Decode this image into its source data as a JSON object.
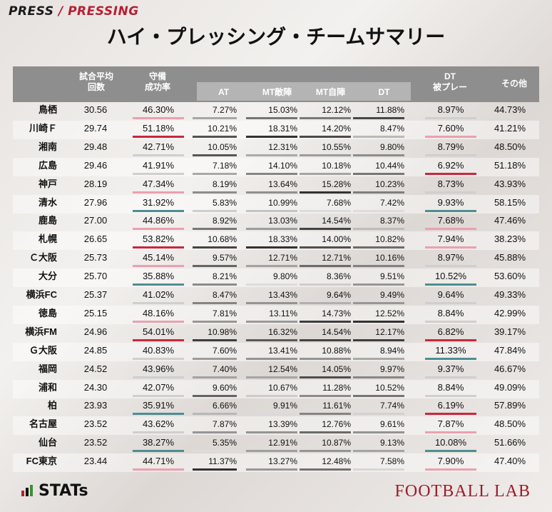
{
  "header_tag": {
    "left": "PRESS",
    "sep": " / ",
    "right": "PRESSING"
  },
  "title": "ハイ・プレッシング・チームサマリー",
  "columns": {
    "games_line1": "試合平均",
    "games_line2": "回数",
    "def_line1": "守備",
    "def_line2": "成功率",
    "at": "AT",
    "mt_fail": "MT敵陣",
    "mt_self": "MT自陣",
    "dt": "DT",
    "dt_pressed_line1": "DT",
    "dt_pressed_line2": "被プレー",
    "other": "その他"
  },
  "colors": {
    "high": "#c8283c",
    "mid_high": "#eaa0ad",
    "mid": "#cfcfcf",
    "low": "#4e8e93",
    "dark": "#333333"
  },
  "rows": [
    {
      "team": "鳥栖",
      "games": "30.56",
      "def": "46.30%",
      "at": "7.27%",
      "mt_fail": "15.03%",
      "mt_self": "12.12%",
      "dt": "11.88%",
      "dtp": "8.97%",
      "other": "44.73%"
    },
    {
      "team": "川崎Ｆ",
      "games": "29.74",
      "def": "51.18%",
      "at": "10.21%",
      "mt_fail": "18.31%",
      "mt_self": "14.20%",
      "dt": "8.47%",
      "dtp": "7.60%",
      "other": "41.21%"
    },
    {
      "team": "湘南",
      "games": "29.48",
      "def": "42.71%",
      "at": "10.05%",
      "mt_fail": "12.31%",
      "mt_self": "10.55%",
      "dt": "9.80%",
      "dtp": "8.79%",
      "other": "48.50%"
    },
    {
      "team": "広島",
      "games": "29.46",
      "def": "41.91%",
      "at": "7.18%",
      "mt_fail": "14.10%",
      "mt_self": "10.18%",
      "dt": "10.44%",
      "dtp": "6.92%",
      "other": "51.18%"
    },
    {
      "team": "神戸",
      "games": "28.19",
      "def": "47.34%",
      "at": "8.19%",
      "mt_fail": "13.64%",
      "mt_self": "15.28%",
      "dt": "10.23%",
      "dtp": "8.73%",
      "other": "43.93%"
    },
    {
      "team": "清水",
      "games": "27.96",
      "def": "31.92%",
      "at": "5.83%",
      "mt_fail": "10.99%",
      "mt_self": "7.68%",
      "dt": "7.42%",
      "dtp": "9.93%",
      "other": "58.15%"
    },
    {
      "team": "鹿島",
      "games": "27.00",
      "def": "44.86%",
      "at": "8.92%",
      "mt_fail": "13.03%",
      "mt_self": "14.54%",
      "dt": "8.37%",
      "dtp": "7.68%",
      "other": "47.46%"
    },
    {
      "team": "札幌",
      "games": "26.65",
      "def": "53.82%",
      "at": "10.68%",
      "mt_fail": "18.33%",
      "mt_self": "14.00%",
      "dt": "10.82%",
      "dtp": "7.94%",
      "other": "38.23%"
    },
    {
      "team": "Ｃ大阪",
      "games": "25.73",
      "def": "45.14%",
      "at": "9.57%",
      "mt_fail": "12.71%",
      "mt_self": "12.71%",
      "dt": "10.16%",
      "dtp": "8.97%",
      "other": "45.88%"
    },
    {
      "team": "大分",
      "games": "25.70",
      "def": "35.88%",
      "at": "8.21%",
      "mt_fail": "9.80%",
      "mt_self": "8.36%",
      "dt": "9.51%",
      "dtp": "10.52%",
      "other": "53.60%"
    },
    {
      "team": "横浜FC",
      "games": "25.37",
      "def": "41.02%",
      "at": "8.47%",
      "mt_fail": "13.43%",
      "mt_self": "9.64%",
      "dt": "9.49%",
      "dtp": "9.64%",
      "other": "49.33%"
    },
    {
      "team": "徳島",
      "games": "25.15",
      "def": "48.16%",
      "at": "7.81%",
      "mt_fail": "13.11%",
      "mt_self": "14.73%",
      "dt": "12.52%",
      "dtp": "8.84%",
      "other": "42.99%"
    },
    {
      "team": "横浜FM",
      "games": "24.96",
      "def": "54.01%",
      "at": "10.98%",
      "mt_fail": "16.32%",
      "mt_self": "14.54%",
      "dt": "12.17%",
      "dtp": "6.82%",
      "other": "39.17%"
    },
    {
      "team": "Ｇ大阪",
      "games": "24.85",
      "def": "40.83%",
      "at": "7.60%",
      "mt_fail": "13.41%",
      "mt_self": "10.88%",
      "dt": "8.94%",
      "dtp": "11.33%",
      "other": "47.84%"
    },
    {
      "team": "福岡",
      "games": "24.52",
      "def": "43.96%",
      "at": "7.40%",
      "mt_fail": "12.54%",
      "mt_self": "14.05%",
      "dt": "9.97%",
      "dtp": "9.37%",
      "other": "46.67%"
    },
    {
      "team": "浦和",
      "games": "24.30",
      "def": "42.07%",
      "at": "9.60%",
      "mt_fail": "10.67%",
      "mt_self": "11.28%",
      "dt": "10.52%",
      "dtp": "8.84%",
      "other": "49.09%"
    },
    {
      "team": "柏",
      "games": "23.93",
      "def": "35.91%",
      "at": "6.66%",
      "mt_fail": "9.91%",
      "mt_self": "11.61%",
      "dt": "7.74%",
      "dtp": "6.19%",
      "other": "57.89%"
    },
    {
      "team": "名古屋",
      "games": "23.52",
      "def": "43.62%",
      "at": "7.87%",
      "mt_fail": "13.39%",
      "mt_self": "12.76%",
      "dt": "9.61%",
      "dtp": "7.87%",
      "other": "48.50%"
    },
    {
      "team": "仙台",
      "games": "23.52",
      "def": "38.27%",
      "at": "5.35%",
      "mt_fail": "12.91%",
      "mt_self": "10.87%",
      "dt": "9.13%",
      "dtp": "10.08%",
      "other": "51.66%"
    },
    {
      "team": "FC東京",
      "games": "23.44",
      "def": "44.71%",
      "at": "11.37%",
      "mt_fail": "13.27%",
      "mt_self": "12.48%",
      "dt": "7.58%",
      "dtp": "7.90%",
      "other": "47.40%"
    }
  ],
  "footer": {
    "stats_logo": "STATs",
    "lab_logo": "FOOTBALL LAB"
  }
}
